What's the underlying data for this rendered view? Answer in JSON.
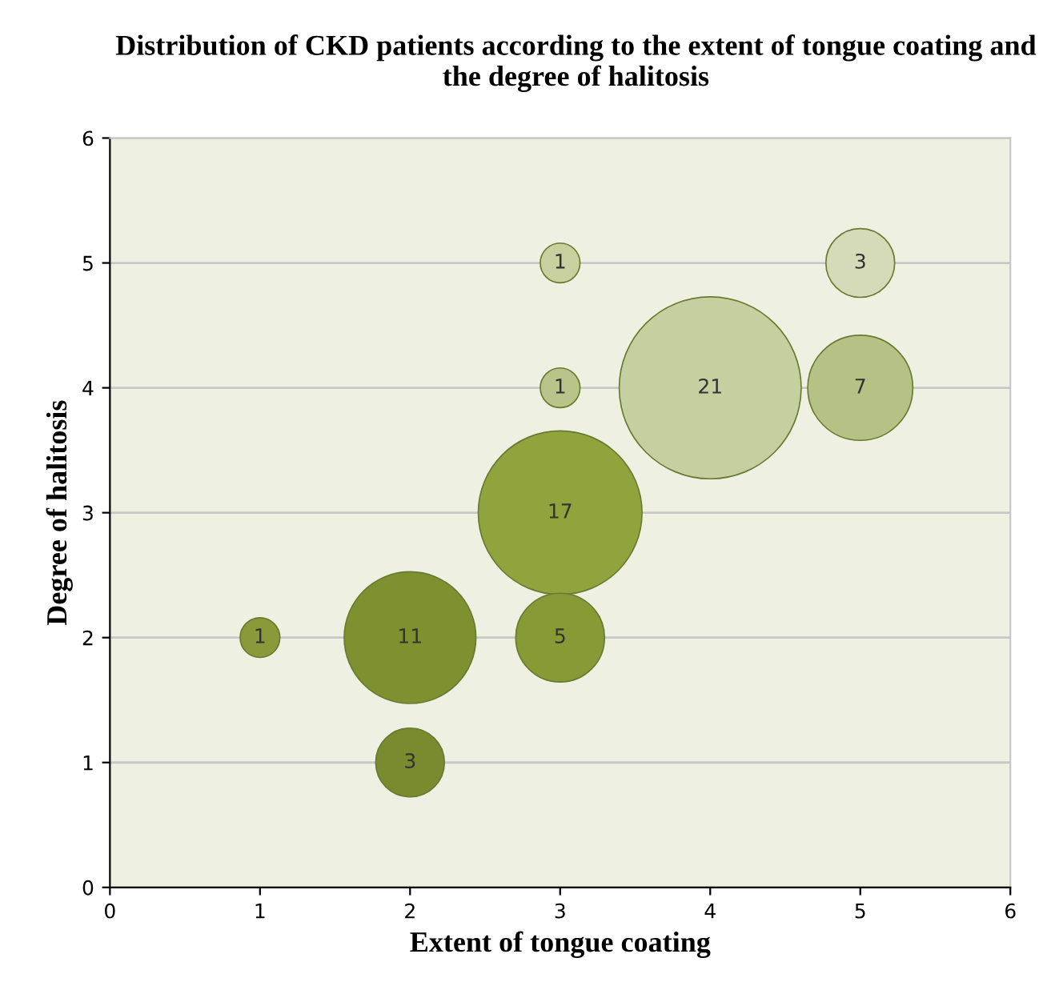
{
  "chart_data": {
    "type": "bubble",
    "title": "Distribution of CKD patients according to the extent of tongue coating and the degree of halitosis",
    "xlabel": "Extent of tongue coating",
    "ylabel": "Degree of halitosis",
    "x": [
      1,
      2,
      2,
      3,
      3,
      3,
      3,
      4,
      5,
      5
    ],
    "values": [
      2,
      2,
      1,
      5,
      4,
      3,
      2,
      4,
      5,
      4
    ],
    "sizes": [
      1,
      11,
      3,
      1,
      1,
      17,
      5,
      21,
      3,
      7
    ],
    "value_labels": [
      "1",
      "11",
      "3",
      "1",
      "1",
      "17",
      "5",
      "21",
      "3",
      "7"
    ],
    "colors": [
      "#8a9a3a",
      "#7d9130",
      "#7a8a2e",
      "#c8d0a0",
      "#b8c48a",
      "#8fa43c",
      "#869a36",
      "#c5cfa0",
      "#d5dbb8",
      "#b4c286"
    ],
    "xlim": [
      0,
      6
    ],
    "ylim": [
      0,
      6
    ],
    "xticks": [
      0,
      1,
      2,
      3,
      4,
      5,
      6
    ],
    "yticks": [
      0,
      1,
      2,
      3,
      4,
      5,
      6
    ],
    "grid": "y"
  }
}
